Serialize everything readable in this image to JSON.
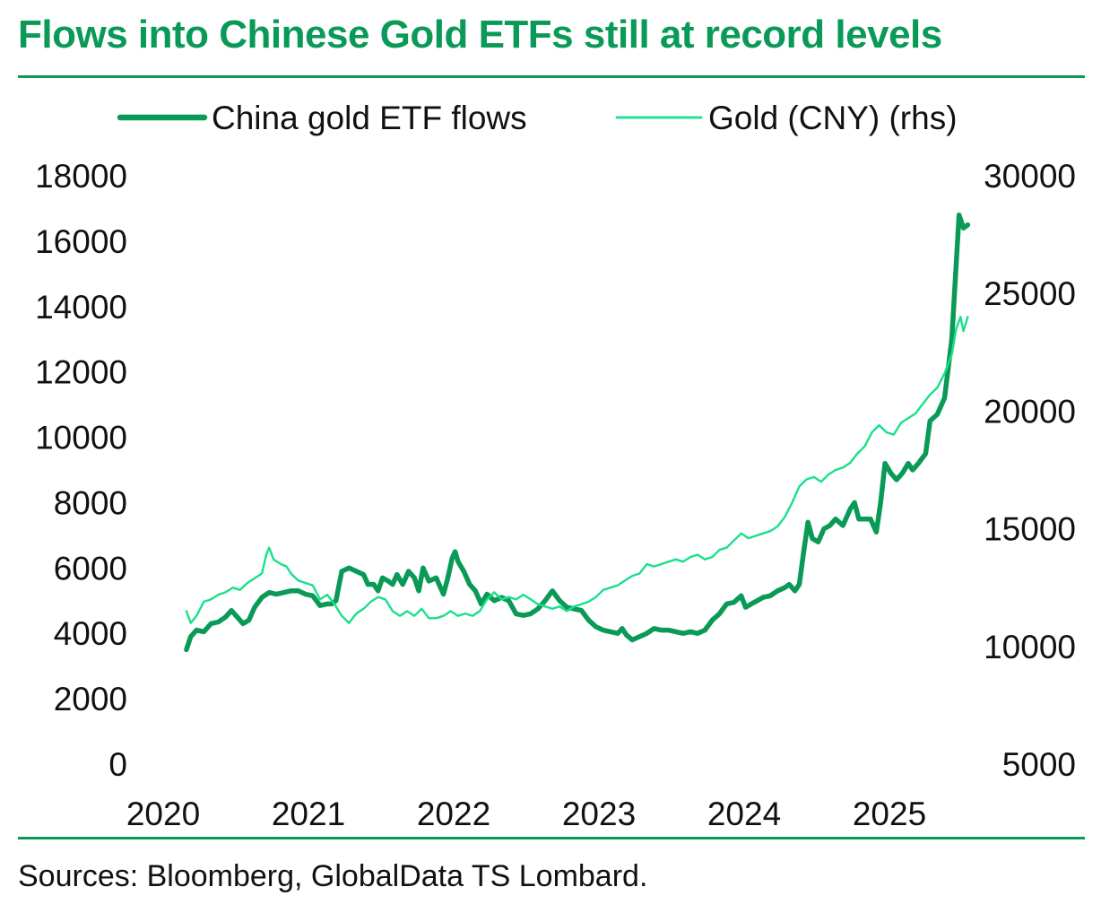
{
  "title": "Flows into Chinese Gold ETFs still at record levels",
  "source": "Sources: Bloomberg, GlobalData TS Lombard.",
  "colors": {
    "accent": "#0a9a57",
    "flows": "#0a9a57",
    "gold": "#19e08a"
  },
  "chart_data": {
    "type": "line",
    "title": "Flows into Chinese Gold ETFs still at record levels",
    "legend_position": "top",
    "grid": false,
    "x_axis": {
      "ticks": [
        "2020",
        "2021",
        "2022",
        "2023",
        "2024",
        "2025"
      ],
      "range": [
        2020.0,
        2025.95
      ]
    },
    "y_left": {
      "ticks": [
        "18000",
        "16000",
        "14000",
        "12000",
        "10000",
        "8000",
        "6000",
        "4000",
        "2000",
        "0"
      ],
      "range": [
        0,
        18000
      ]
    },
    "y_right": {
      "ticks": [
        "30000",
        "25000",
        "20000",
        "15000",
        "10000",
        "5000"
      ],
      "range": [
        5000,
        30000
      ]
    },
    "series": [
      {
        "name": "China gold ETF flows",
        "axis": "left",
        "style": "thick",
        "points": [
          [
            2020.03,
            3500
          ],
          [
            2020.06,
            3900
          ],
          [
            2020.1,
            4100
          ],
          [
            2020.15,
            4050
          ],
          [
            2020.2,
            4300
          ],
          [
            2020.25,
            4350
          ],
          [
            2020.3,
            4500
          ],
          [
            2020.34,
            4700
          ],
          [
            2020.38,
            4500
          ],
          [
            2020.42,
            4300
          ],
          [
            2020.46,
            4400
          ],
          [
            2020.5,
            4800
          ],
          [
            2020.55,
            5100
          ],
          [
            2020.6,
            5250
          ],
          [
            2020.65,
            5200
          ],
          [
            2020.7,
            5250
          ],
          [
            2020.75,
            5300
          ],
          [
            2020.8,
            5300
          ],
          [
            2020.85,
            5200
          ],
          [
            2020.9,
            5150
          ],
          [
            2020.95,
            4850
          ],
          [
            2021.0,
            4900
          ],
          [
            2021.03,
            4900
          ],
          [
            2021.06,
            5000
          ],
          [
            2021.1,
            5900
          ],
          [
            2021.15,
            6000
          ],
          [
            2021.2,
            5900
          ],
          [
            2021.25,
            5800
          ],
          [
            2021.28,
            5500
          ],
          [
            2021.32,
            5500
          ],
          [
            2021.35,
            5300
          ],
          [
            2021.38,
            5700
          ],
          [
            2021.42,
            5600
          ],
          [
            2021.45,
            5500
          ],
          [
            2021.48,
            5800
          ],
          [
            2021.52,
            5500
          ],
          [
            2021.56,
            5900
          ],
          [
            2021.6,
            5700
          ],
          [
            2021.63,
            5300
          ],
          [
            2021.66,
            6000
          ],
          [
            2021.7,
            5600
          ],
          [
            2021.75,
            5700
          ],
          [
            2021.8,
            5200
          ],
          [
            2021.83,
            5700
          ],
          [
            2021.86,
            6300
          ],
          [
            2021.88,
            6500
          ],
          [
            2021.9,
            6200
          ],
          [
            2021.94,
            5900
          ],
          [
            2021.98,
            5500
          ],
          [
            2022.02,
            5300
          ],
          [
            2022.06,
            4900
          ],
          [
            2022.1,
            5200
          ],
          [
            2022.15,
            5000
          ],
          [
            2022.2,
            5100
          ],
          [
            2022.25,
            5000
          ],
          [
            2022.3,
            4600
          ],
          [
            2022.35,
            4550
          ],
          [
            2022.4,
            4600
          ],
          [
            2022.45,
            4750
          ],
          [
            2022.5,
            5000
          ],
          [
            2022.55,
            5300
          ],
          [
            2022.6,
            5000
          ],
          [
            2022.65,
            4800
          ],
          [
            2022.7,
            4750
          ],
          [
            2022.75,
            4700
          ],
          [
            2022.8,
            4400
          ],
          [
            2022.85,
            4200
          ],
          [
            2022.9,
            4100
          ],
          [
            2022.95,
            4050
          ],
          [
            2023.0,
            4000
          ],
          [
            2023.03,
            4150
          ],
          [
            2023.06,
            3950
          ],
          [
            2023.1,
            3800
          ],
          [
            2023.15,
            3900
          ],
          [
            2023.2,
            4000
          ],
          [
            2023.25,
            4150
          ],
          [
            2023.3,
            4100
          ],
          [
            2023.35,
            4100
          ],
          [
            2023.4,
            4050
          ],
          [
            2023.45,
            4000
          ],
          [
            2023.5,
            4050
          ],
          [
            2023.55,
            4000
          ],
          [
            2023.6,
            4100
          ],
          [
            2023.65,
            4400
          ],
          [
            2023.7,
            4600
          ],
          [
            2023.75,
            4900
          ],
          [
            2023.8,
            4950
          ],
          [
            2023.85,
            5150
          ],
          [
            2023.88,
            4800
          ],
          [
            2023.92,
            4900
          ],
          [
            2023.96,
            5000
          ],
          [
            2024.0,
            5100
          ],
          [
            2024.05,
            5150
          ],
          [
            2024.1,
            5300
          ],
          [
            2024.15,
            5400
          ],
          [
            2024.18,
            5500
          ],
          [
            2024.22,
            5300
          ],
          [
            2024.25,
            5500
          ],
          [
            2024.28,
            6500
          ],
          [
            2024.31,
            7400
          ],
          [
            2024.34,
            6900
          ],
          [
            2024.38,
            6800
          ],
          [
            2024.42,
            7200
          ],
          [
            2024.46,
            7300
          ],
          [
            2024.5,
            7500
          ],
          [
            2024.55,
            7300
          ],
          [
            2024.6,
            7800
          ],
          [
            2024.63,
            8000
          ],
          [
            2024.66,
            7500
          ],
          [
            2024.7,
            7500
          ],
          [
            2024.74,
            7500
          ],
          [
            2024.78,
            7100
          ],
          [
            2024.81,
            8000
          ],
          [
            2024.84,
            9200
          ],
          [
            2024.88,
            8900
          ],
          [
            2024.92,
            8700
          ],
          [
            2024.96,
            8900
          ],
          [
            2025.0,
            9200
          ],
          [
            2025.03,
            9000
          ],
          [
            2025.07,
            9200
          ],
          [
            2025.12,
            9500
          ],
          [
            2025.15,
            10500
          ],
          [
            2025.2,
            10700
          ],
          [
            2025.25,
            11200
          ],
          [
            2025.3,
            13000
          ],
          [
            2025.35,
            16800
          ],
          [
            2025.38,
            16400
          ],
          [
            2025.41,
            16500
          ]
        ]
      },
      {
        "name": "Gold (CNY) (rhs)",
        "axis": "right",
        "style": "thin",
        "points": [
          [
            2020.03,
            11500
          ],
          [
            2020.06,
            11000
          ],
          [
            2020.1,
            11300
          ],
          [
            2020.15,
            11900
          ],
          [
            2020.2,
            12000
          ],
          [
            2020.25,
            12200
          ],
          [
            2020.3,
            12300
          ],
          [
            2020.35,
            12500
          ],
          [
            2020.4,
            12400
          ],
          [
            2020.45,
            12700
          ],
          [
            2020.5,
            12900
          ],
          [
            2020.55,
            13100
          ],
          [
            2020.58,
            13900
          ],
          [
            2020.6,
            14200
          ],
          [
            2020.63,
            13700
          ],
          [
            2020.68,
            13500
          ],
          [
            2020.72,
            13400
          ],
          [
            2020.75,
            13100
          ],
          [
            2020.8,
            12800
          ],
          [
            2020.85,
            12700
          ],
          [
            2020.9,
            12600
          ],
          [
            2020.95,
            12000
          ],
          [
            2021.0,
            12200
          ],
          [
            2021.05,
            11800
          ],
          [
            2021.1,
            11300
          ],
          [
            2021.15,
            11000
          ],
          [
            2021.2,
            11400
          ],
          [
            2021.25,
            11600
          ],
          [
            2021.3,
            11900
          ],
          [
            2021.35,
            12100
          ],
          [
            2021.4,
            12000
          ],
          [
            2021.45,
            11500
          ],
          [
            2021.5,
            11300
          ],
          [
            2021.55,
            11500
          ],
          [
            2021.6,
            11300
          ],
          [
            2021.65,
            11600
          ],
          [
            2021.7,
            11200
          ],
          [
            2021.75,
            11200
          ],
          [
            2021.8,
            11300
          ],
          [
            2021.85,
            11500
          ],
          [
            2021.9,
            11300
          ],
          [
            2021.95,
            11400
          ],
          [
            2022.0,
            11300
          ],
          [
            2022.05,
            11500
          ],
          [
            2022.1,
            12000
          ],
          [
            2022.15,
            12300
          ],
          [
            2022.2,
            12000
          ],
          [
            2022.25,
            12100
          ],
          [
            2022.3,
            12000
          ],
          [
            2022.35,
            12200
          ],
          [
            2022.4,
            12000
          ],
          [
            2022.45,
            11800
          ],
          [
            2022.5,
            11700
          ],
          [
            2022.55,
            11600
          ],
          [
            2022.6,
            11700
          ],
          [
            2022.65,
            11500
          ],
          [
            2022.7,
            11700
          ],
          [
            2022.75,
            11800
          ],
          [
            2022.8,
            11900
          ],
          [
            2022.85,
            12100
          ],
          [
            2022.9,
            12400
          ],
          [
            2022.95,
            12500
          ],
          [
            2023.0,
            12600
          ],
          [
            2023.05,
            12800
          ],
          [
            2023.1,
            13000
          ],
          [
            2023.15,
            13100
          ],
          [
            2023.2,
            13500
          ],
          [
            2023.25,
            13400
          ],
          [
            2023.3,
            13500
          ],
          [
            2023.35,
            13600
          ],
          [
            2023.4,
            13700
          ],
          [
            2023.45,
            13600
          ],
          [
            2023.5,
            13800
          ],
          [
            2023.55,
            13900
          ],
          [
            2023.6,
            13700
          ],
          [
            2023.65,
            13800
          ],
          [
            2023.7,
            14100
          ],
          [
            2023.75,
            14200
          ],
          [
            2023.8,
            14500
          ],
          [
            2023.85,
            14800
          ],
          [
            2023.9,
            14600
          ],
          [
            2023.95,
            14700
          ],
          [
            2024.0,
            14800
          ],
          [
            2024.05,
            14900
          ],
          [
            2024.1,
            15100
          ],
          [
            2024.15,
            15500
          ],
          [
            2024.2,
            16100
          ],
          [
            2024.25,
            16800
          ],
          [
            2024.3,
            17100
          ],
          [
            2024.35,
            17200
          ],
          [
            2024.4,
            17000
          ],
          [
            2024.45,
            17300
          ],
          [
            2024.5,
            17500
          ],
          [
            2024.55,
            17600
          ],
          [
            2024.6,
            17800
          ],
          [
            2024.65,
            18200
          ],
          [
            2024.7,
            18500
          ],
          [
            2024.75,
            19100
          ],
          [
            2024.8,
            19400
          ],
          [
            2024.85,
            19100
          ],
          [
            2024.9,
            19000
          ],
          [
            2024.95,
            19500
          ],
          [
            2025.0,
            19700
          ],
          [
            2025.05,
            19900
          ],
          [
            2025.1,
            20300
          ],
          [
            2025.15,
            20700
          ],
          [
            2025.2,
            21000
          ],
          [
            2025.25,
            21600
          ],
          [
            2025.3,
            22400
          ],
          [
            2025.33,
            23500
          ],
          [
            2025.36,
            24000
          ],
          [
            2025.38,
            23400
          ],
          [
            2025.41,
            24000
          ]
        ]
      }
    ]
  }
}
